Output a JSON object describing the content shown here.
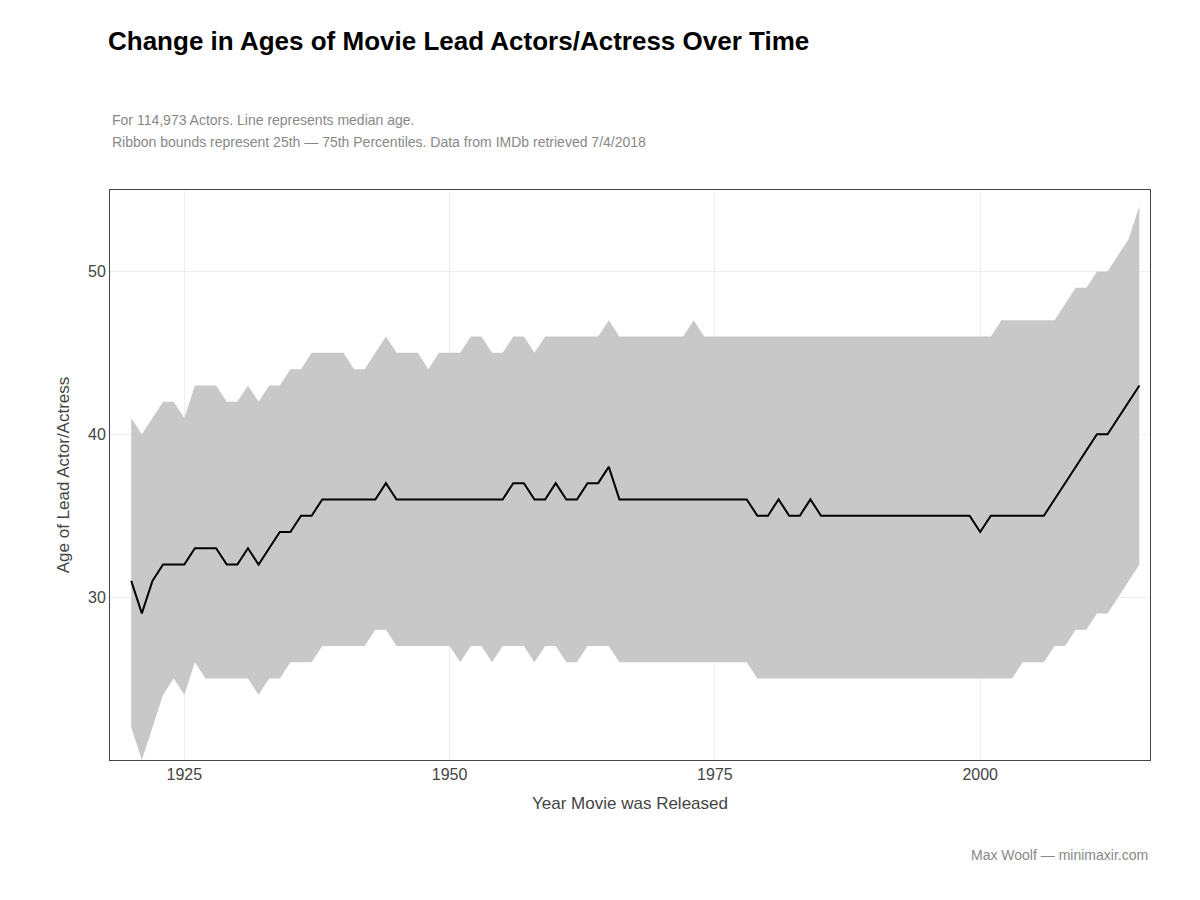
{
  "chart_data": {
    "type": "line",
    "title": "Change in Ages of Movie Lead Actors/Actress Over Time",
    "subtitle": [
      "For 114,973 Actors. Line represents median age.",
      "Ribbon bounds represent 25th — 75th Percentiles. Data from IMDb retrieved 7/4/2018"
    ],
    "xlabel": "Year Movie was Released",
    "ylabel": "Age of Lead Actor/Actress",
    "annotations": [
      "Max Woolf — minimaxir.com"
    ],
    "x": [
      1920,
      1921,
      1922,
      1923,
      1924,
      1925,
      1926,
      1927,
      1928,
      1929,
      1930,
      1931,
      1932,
      1933,
      1934,
      1935,
      1936,
      1937,
      1938,
      1939,
      1940,
      1941,
      1942,
      1943,
      1944,
      1945,
      1946,
      1947,
      1948,
      1949,
      1950,
      1951,
      1952,
      1953,
      1954,
      1955,
      1956,
      1957,
      1958,
      1959,
      1960,
      1961,
      1962,
      1963,
      1964,
      1965,
      1966,
      1967,
      1968,
      1969,
      1970,
      1971,
      1972,
      1973,
      1974,
      1975,
      1976,
      1977,
      1978,
      1979,
      1980,
      1981,
      1982,
      1983,
      1984,
      1985,
      1986,
      1987,
      1988,
      1989,
      1990,
      1991,
      1992,
      1993,
      1994,
      1995,
      1996,
      1997,
      1998,
      1999,
      2000,
      2001,
      2002,
      2003,
      2004,
      2005,
      2006,
      2007,
      2008,
      2009,
      2010,
      2011,
      2012,
      2013,
      2014,
      2015
    ],
    "values": [
      31,
      29,
      31,
      32,
      32,
      32,
      33,
      33,
      33,
      32,
      32,
      33,
      32,
      33,
      34,
      34,
      35,
      35,
      36,
      36,
      36,
      36,
      36,
      36,
      37,
      36,
      36,
      36,
      36,
      36,
      36,
      36,
      36,
      36,
      36,
      36,
      37,
      37,
      36,
      36,
      37,
      36,
      36,
      37,
      37,
      38,
      36,
      36,
      36,
      36,
      36,
      36,
      36,
      36,
      36,
      36,
      36,
      36,
      36,
      35,
      35,
      36,
      35,
      35,
      36,
      35,
      35,
      35,
      35,
      35,
      35,
      35,
      35,
      35,
      35,
      35,
      35,
      35,
      35,
      35,
      34,
      35,
      35,
      35,
      35,
      35,
      35,
      36,
      37,
      38,
      39,
      40,
      40,
      41,
      42,
      43
    ],
    "color": "#000000",
    "ribbon": {
      "color": "#c8c8c8",
      "lower": [
        22,
        20,
        22,
        24,
        25,
        24,
        26,
        25,
        25,
        25,
        25,
        25,
        24,
        25,
        25,
        26,
        26,
        26,
        27,
        27,
        27,
        27,
        27,
        28,
        28,
        27,
        27,
        27,
        27,
        27,
        27,
        26,
        27,
        27,
        26,
        27,
        27,
        27,
        26,
        27,
        27,
        26,
        26,
        27,
        27,
        27,
        26,
        26,
        26,
        26,
        26,
        26,
        26,
        26,
        26,
        26,
        26,
        26,
        26,
        25,
        25,
        25,
        25,
        25,
        25,
        25,
        25,
        25,
        25,
        25,
        25,
        25,
        25,
        25,
        25,
        25,
        25,
        25,
        25,
        25,
        25,
        25,
        25,
        25,
        26,
        26,
        26,
        27,
        27,
        28,
        28,
        29,
        29,
        30,
        31,
        32
      ],
      "upper": [
        41,
        40,
        41,
        42,
        42,
        41,
        43,
        43,
        43,
        42,
        42,
        43,
        42,
        43,
        43,
        44,
        44,
        45,
        45,
        45,
        45,
        44,
        44,
        45,
        46,
        45,
        45,
        45,
        44,
        45,
        45,
        45,
        46,
        46,
        45,
        45,
        46,
        46,
        45,
        46,
        46,
        46,
        46,
        46,
        46,
        47,
        46,
        46,
        46,
        46,
        46,
        46,
        46,
        47,
        46,
        46,
        46,
        46,
        46,
        46,
        46,
        46,
        46,
        46,
        46,
        46,
        46,
        46,
        46,
        46,
        46,
        46,
        46,
        46,
        46,
        46,
        46,
        46,
        46,
        46,
        46,
        46,
        47,
        47,
        47,
        47,
        47,
        47,
        48,
        49,
        49,
        50,
        50,
        51,
        52,
        54
      ]
    },
    "xlim": [
      1918,
      2016
    ],
    "ylim": [
      20,
      55
    ],
    "xticks": [
      1925,
      1950,
      1975,
      2000
    ],
    "yticks": [
      30,
      40,
      50
    ],
    "grid": true
  }
}
